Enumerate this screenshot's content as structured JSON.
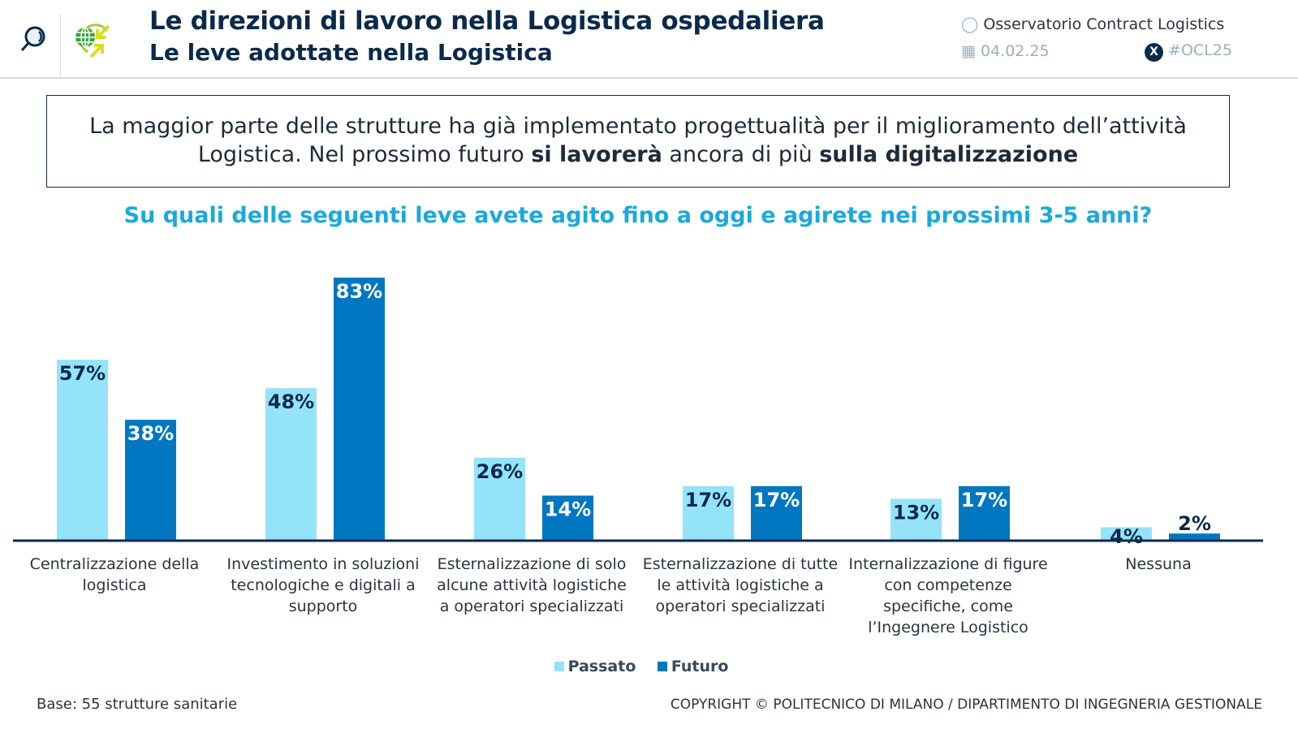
{
  "header": {
    "title": "Le direzioni di lavoro nella Logistica ospedaliera",
    "subtitle": "Le leve adottate nella Logistica",
    "observatory": "Osservatorio Contract Logistics",
    "date": "04.02.25",
    "hashtag": "#OCL25"
  },
  "message": {
    "part1": "La maggior parte delle strutture ha già implementato progettualità per il miglioramento dell’attività Logistica. Nel prossimo futuro ",
    "bold1": "si lavorerà",
    "part2": " ancora di più ",
    "bold2": "sulla digitalizzazione"
  },
  "question": "Su quali delle seguenti leve avete agito fino a oggi e agirete nei prossimi 3-5 anni?",
  "colors": {
    "passato": "#94e3f9",
    "futuro": "#0077c0",
    "navy": "#0b2a4a",
    "accent": "#1aa9de"
  },
  "chart_data": {
    "type": "bar",
    "categories": [
      "Centralizzazione della logistica",
      "Investimento in soluzioni tecnologiche e digitali a supporto",
      "Esternalizzazione di solo alcune attività logistiche a operatori specializzati",
      "Esternalizzazione di tutte le attività logistiche a operatori specializzati",
      "Internalizzazione di figure con competenze specifiche, come l’Ingegnere Logistico",
      "Nessuna"
    ],
    "series": [
      {
        "name": "Passato",
        "values": [
          57,
          48,
          26,
          17,
          13,
          4
        ]
      },
      {
        "name": "Futuro",
        "values": [
          38,
          83,
          14,
          17,
          17,
          2
        ]
      }
    ],
    "data_labels": {
      "Passato": [
        "57%",
        "48%",
        "26%",
        "17%",
        "13%",
        "4%"
      ],
      "Futuro": [
        "38%",
        "83%",
        "14%",
        "17%",
        "17%",
        "2%"
      ]
    },
    "unit": "%",
    "ylim": [
      0,
      83
    ],
    "grid": false,
    "legend": "bottom-center"
  },
  "footer": {
    "base": "Base: 55 strutture sanitarie",
    "copyright": "COPYRIGHT © POLITECNICO DI MILANO / DIPARTIMENTO DI INGEGNERIA GESTIONALE"
  }
}
